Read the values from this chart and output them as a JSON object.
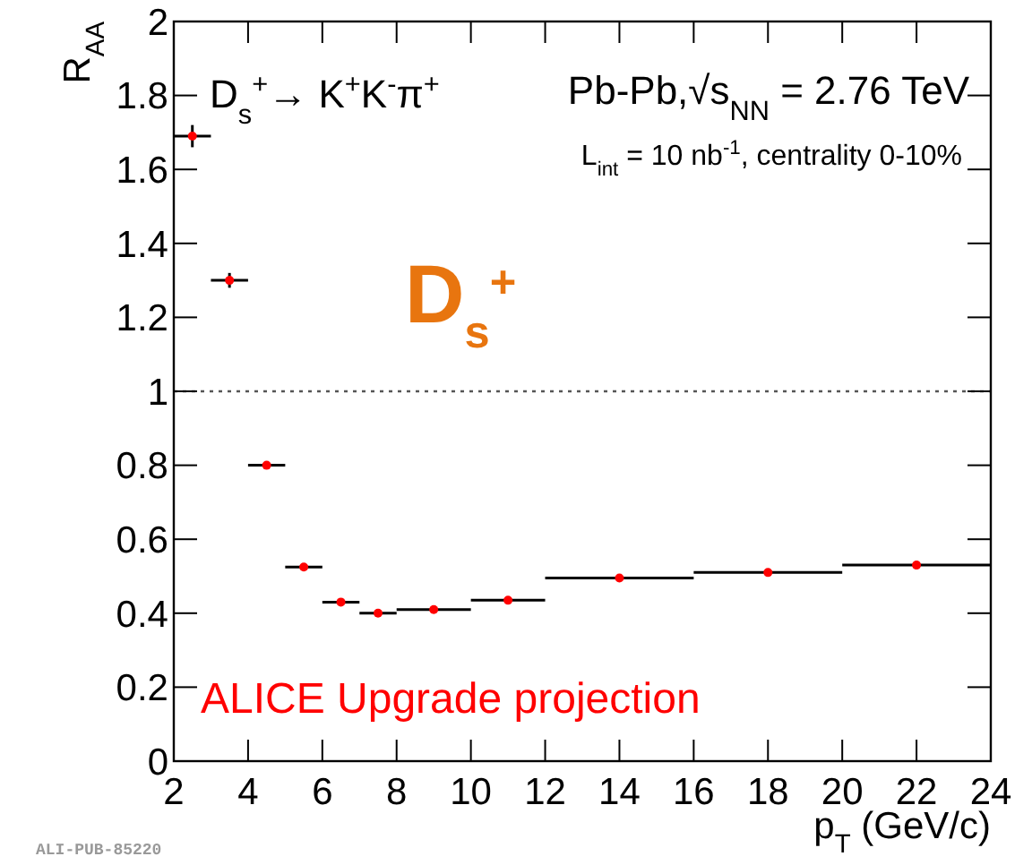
{
  "chart_data": {
    "type": "scatter",
    "xlabel": "p$_{T}$ (GeV/c)",
    "ylabel": "R$_{AA}$",
    "xlim": [
      2,
      24
    ],
    "xticks": [
      2,
      4,
      6,
      8,
      10,
      12,
      14,
      16,
      18,
      20,
      22,
      24
    ],
    "ylim": [
      0,
      2
    ],
    "yticks": [
      0,
      0.2,
      0.4,
      0.6,
      0.8,
      1,
      1.2,
      1.4,
      1.6,
      1.8,
      2
    ],
    "series": [
      {
        "color": "#ff0000",
        "x": [
          2.5,
          3.5,
          4.5,
          5.5,
          6.5,
          7.5,
          9,
          11,
          14,
          18,
          22
        ],
        "values": [
          1.69,
          1.3,
          0.8,
          0.525,
          0.43,
          0.4,
          0.41,
          0.435,
          0.495,
          0.51,
          0.53
        ],
        "xerrors": [
          0.5,
          0.5,
          0.5,
          0.5,
          0.5,
          0.5,
          1,
          1,
          2,
          2,
          2
        ],
        "errors": [
          0.03,
          0.02,
          null,
          null,
          null,
          null,
          null,
          null,
          null,
          null,
          null
        ]
      }
    ],
    "marker": "circle",
    "ref_lines": [
      {
        "axis": "y",
        "value": 1,
        "line_style": "dotted",
        "color": "#555555"
      }
    ],
    "annotations": [
      "D$_{s}$$^{+}$→ K$^{+}$K$^{-}$π$^{+}$",
      "Pb-Pb,√s$_{NN}$ = 2.76 TeV",
      "L$_{int}$ = 10 nb$^{-1}$, centrality 0-10%",
      "D$_{s}$$^{+}$",
      "ALICE Upgrade projection",
      "ALI-PUB-85220"
    ]
  }
}
